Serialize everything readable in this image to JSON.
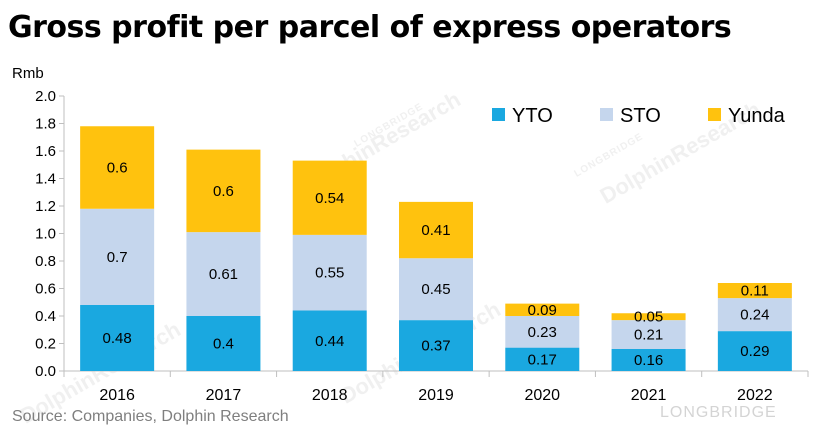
{
  "title": "Gross profit per parcel of express operators",
  "source": "Source: Companies, Dolphin Research",
  "watermark": {
    "brand_small": "LONGBRIDGE",
    "brand_large": "DolphinResearch",
    "footer": "LONGBRIDGE"
  },
  "colors": {
    "YTO": "#1aa8e0",
    "STO": "#c5d6ed",
    "Yunda": "#ffc20e"
  },
  "chart_data": {
    "type": "bar",
    "stacked": true,
    "title": "Gross profit per parcel of express operators",
    "ylabel": "Rmb",
    "xlabel": "",
    "ylim": [
      0,
      2.0
    ],
    "yticks": [
      "0.0",
      "0.2",
      "0.4",
      "0.6",
      "0.8",
      "1.0",
      "1.2",
      "1.4",
      "1.6",
      "1.8",
      "2.0"
    ],
    "categories": [
      "2016",
      "2017",
      "2018",
      "2019",
      "2020",
      "2021",
      "2022"
    ],
    "series": [
      {
        "name": "YTO",
        "values": [
          0.48,
          0.4,
          0.44,
          0.37,
          0.17,
          0.16,
          0.29
        ],
        "labels": [
          "0.48",
          "0.4",
          "0.44",
          "0.37",
          "0.17",
          "0.16",
          "0.29"
        ]
      },
      {
        "name": "STO",
        "values": [
          0.7,
          0.61,
          0.55,
          0.45,
          0.23,
          0.21,
          0.24
        ],
        "labels": [
          "0.7",
          "0.61",
          "0.55",
          "0.45",
          "0.23",
          "0.21",
          "0.24"
        ]
      },
      {
        "name": "Yunda",
        "values": [
          0.6,
          0.6,
          0.54,
          0.41,
          0.09,
          0.05,
          0.11
        ],
        "labels": [
          "0.6",
          "0.6",
          "0.54",
          "0.41",
          "0.09",
          "0.05",
          "0.11"
        ]
      }
    ],
    "legend": [
      "YTO",
      "STO",
      "Yunda"
    ],
    "legend_position": "top-right"
  }
}
